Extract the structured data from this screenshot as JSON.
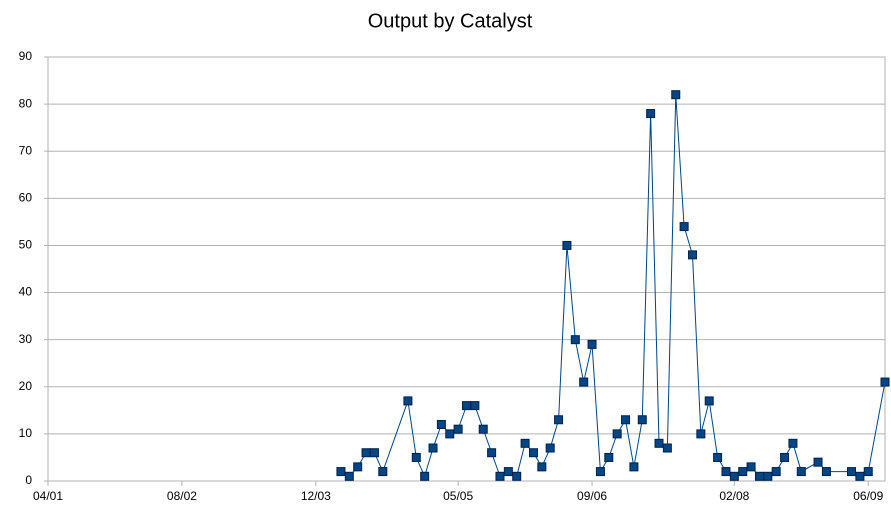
{
  "chart_data": {
    "type": "line",
    "title": "Output by Catalyst",
    "x": [
      "2004-03",
      "2004-04",
      "2004-05",
      "2004-06",
      "2004-07",
      "2004-08",
      "2004-11",
      "2004-12",
      "2005-01",
      "2005-02",
      "2005-03",
      "2005-04",
      "2005-05",
      "2005-06",
      "2005-07",
      "2005-08",
      "2005-09",
      "2005-10",
      "2005-11",
      "2005-12",
      "2006-01",
      "2006-02",
      "2006-03",
      "2006-04",
      "2006-05",
      "2006-06",
      "2006-07",
      "2006-08",
      "2006-09",
      "2006-10",
      "2006-11",
      "2006-12",
      "2007-01",
      "2007-02",
      "2007-03",
      "2007-04",
      "2007-05",
      "2007-06",
      "2007-07",
      "2007-08",
      "2007-09",
      "2007-10",
      "2007-11",
      "2007-12",
      "2008-01",
      "2008-02",
      "2008-03",
      "2008-04",
      "2008-05",
      "2008-06",
      "2008-07",
      "2008-08",
      "2008-09",
      "2008-10",
      "2008-12",
      "2009-01",
      "2009-04",
      "2009-05",
      "2009-06",
      "2009-08"
    ],
    "values": [
      2,
      1,
      3,
      6,
      6,
      2,
      17,
      5,
      1,
      7,
      12,
      10,
      11,
      16,
      16,
      11,
      6,
      1,
      2,
      1,
      8,
      6,
      3,
      7,
      13,
      50,
      30,
      21,
      29,
      2,
      5,
      10,
      13,
      3,
      13,
      78,
      8,
      7,
      82,
      54,
      48,
      10,
      17,
      5,
      2,
      1,
      2,
      3,
      1,
      1,
      2,
      5,
      8,
      2,
      4,
      2,
      2,
      1,
      2,
      21
    ],
    "color": "#004586",
    "xlim": [
      "2001-04",
      "2009-08"
    ],
    "xticks": [
      {
        "value": "2001-04",
        "label": "04/01"
      },
      {
        "value": "2002-08",
        "label": "08/02"
      },
      {
        "value": "2003-12",
        "label": "12/03"
      },
      {
        "value": "2005-05",
        "label": "05/05"
      },
      {
        "value": "2006-09",
        "label": "09/06"
      },
      {
        "value": "2008-02",
        "label": "02/08"
      },
      {
        "value": "2009-06",
        "label": "06/09"
      }
    ],
    "ylim": [
      0,
      90
    ],
    "yticks": [
      0,
      10,
      20,
      30,
      40,
      50,
      60,
      70,
      80,
      90
    ],
    "grid": true
  }
}
